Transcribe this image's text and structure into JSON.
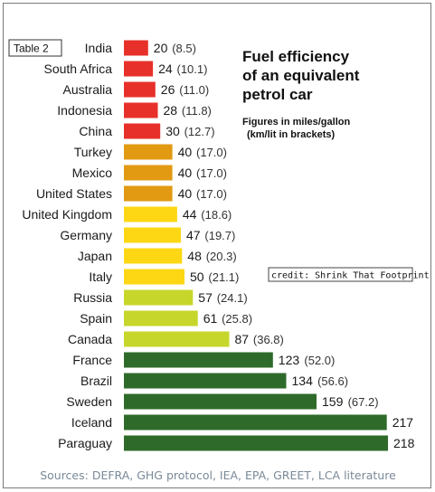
{
  "table_tag": "Table 2",
  "credit": "credit: Shrink That Footprint",
  "sources": "Sources: DEFRA, GHG protocol, IEA, EPA, GREET, LCA literature",
  "chart_data": {
    "type": "bar",
    "orientation": "horizontal",
    "title": "Fuel efficiency of an equivalent petrol car",
    "title_lines": [
      "Fuel efficiency",
      "of an equivalent",
      "petrol car"
    ],
    "subtitle": "Figures in miles/gallon (km/lit in brackets)",
    "subtitle_lines": [
      "Figures in miles/gallon",
      "(km/lit in brackets)"
    ],
    "categories": [
      "India",
      "South Africa",
      "Australia",
      "Indonesia",
      "China",
      "Turkey",
      "Mexico",
      "United States",
      "United Kingdom",
      "Germany",
      "Japan",
      "Italy",
      "Russia",
      "Spain",
      "Canada",
      "France",
      "Brazil",
      "Sweden",
      "Iceland",
      "Paraguay"
    ],
    "values": [
      20,
      24,
      26,
      28,
      30,
      40,
      40,
      40,
      44,
      47,
      48,
      50,
      57,
      61,
      87,
      123,
      134,
      159,
      217,
      218
    ],
    "secondary_labels": [
      "(8.5)",
      "(10.1)",
      "(11.0)",
      "(11.8)",
      "(12.7)",
      "(17.0)",
      "(17.0)",
      "(17.0)",
      "(18.6)",
      "(19.7)",
      "(20.3)",
      "(21.1)",
      "(24.1)",
      "(25.8)",
      "(36.8)",
      "(52.0)",
      "(56.6)",
      "(67.2)",
      "",
      ""
    ],
    "bar_colors": [
      "#e8302a",
      "#e8302a",
      "#e8302a",
      "#e8302a",
      "#e8302a",
      "#e19a12",
      "#e19a12",
      "#e19a12",
      "#fdd714",
      "#fdd714",
      "#fdd714",
      "#fdd714",
      "#c7d62b",
      "#c7d62b",
      "#c7d62b",
      "#2e6b2a",
      "#2e6b2a",
      "#2e6b2a",
      "#2e6b2a",
      "#2e6b2a"
    ],
    "xlim": [
      0,
      218
    ],
    "grid": false,
    "legend": "none"
  }
}
